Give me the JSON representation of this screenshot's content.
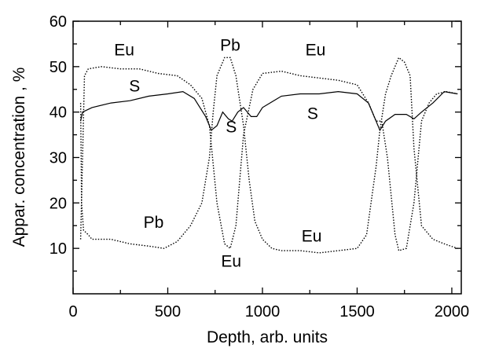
{
  "chart_data": {
    "type": "line",
    "xlabel": "Depth, arb. units",
    "ylabel": "Appar. concentration , %",
    "xlim": [
      0,
      2050
    ],
    "ylim": [
      0,
      60
    ],
    "xticks": [
      0,
      500,
      1000,
      1500,
      2000
    ],
    "yticks": [
      10,
      20,
      30,
      40,
      50,
      60
    ],
    "grid": false,
    "series": [
      {
        "name": "Eu",
        "style": "dotted",
        "points": [
          [
            40,
            12
          ],
          [
            60,
            48
          ],
          [
            80,
            49.5
          ],
          [
            150,
            50
          ],
          [
            250,
            49.5
          ],
          [
            350,
            49.5
          ],
          [
            450,
            48.5
          ],
          [
            550,
            48
          ],
          [
            620,
            46
          ],
          [
            680,
            43
          ],
          [
            720,
            37
          ],
          [
            760,
            20
          ],
          [
            800,
            11
          ],
          [
            830,
            10
          ],
          [
            860,
            15
          ],
          [
            900,
            35
          ],
          [
            950,
            45
          ],
          [
            1000,
            48.5
          ],
          [
            1100,
            49
          ],
          [
            1200,
            48
          ],
          [
            1300,
            47.5
          ],
          [
            1400,
            47
          ],
          [
            1500,
            46
          ],
          [
            1560,
            42
          ],
          [
            1600,
            38
          ],
          [
            1630,
            38
          ],
          [
            1660,
            30
          ],
          [
            1700,
            13
          ],
          [
            1720,
            9.5
          ],
          [
            1760,
            10
          ],
          [
            1800,
            20
          ],
          [
            1840,
            38
          ],
          [
            1880,
            42
          ],
          [
            1920,
            44
          ],
          [
            1970,
            44.5
          ],
          [
            2030,
            44
          ]
        ]
      },
      {
        "name": "S",
        "style": "solid",
        "points": [
          [
            40,
            38
          ],
          [
            50,
            40
          ],
          [
            100,
            41
          ],
          [
            200,
            42
          ],
          [
            300,
            42.5
          ],
          [
            400,
            43.5
          ],
          [
            500,
            44
          ],
          [
            580,
            44.5
          ],
          [
            640,
            43
          ],
          [
            700,
            39
          ],
          [
            730,
            36
          ],
          [
            760,
            37
          ],
          [
            790,
            40
          ],
          [
            820,
            38.5
          ],
          [
            840,
            38
          ],
          [
            870,
            40
          ],
          [
            900,
            41
          ],
          [
            940,
            39
          ],
          [
            970,
            39
          ],
          [
            1000,
            41
          ],
          [
            1100,
            43.5
          ],
          [
            1200,
            44
          ],
          [
            1300,
            44
          ],
          [
            1400,
            44.5
          ],
          [
            1500,
            44
          ],
          [
            1560,
            42
          ],
          [
            1600,
            38
          ],
          [
            1620,
            36
          ],
          [
            1650,
            38
          ],
          [
            1700,
            39.5
          ],
          [
            1760,
            39.5
          ],
          [
            1800,
            38.5
          ],
          [
            1840,
            40
          ],
          [
            1900,
            42
          ],
          [
            1960,
            44.5
          ],
          [
            2030,
            44
          ]
        ]
      },
      {
        "name": "Pb",
        "style": "dotted",
        "points": [
          [
            40,
            42
          ],
          [
            45,
            20
          ],
          [
            55,
            14
          ],
          [
            80,
            13
          ],
          [
            100,
            12
          ],
          [
            150,
            12
          ],
          [
            200,
            12
          ],
          [
            300,
            11
          ],
          [
            400,
            10.5
          ],
          [
            480,
            10
          ],
          [
            550,
            11.5
          ],
          [
            620,
            15
          ],
          [
            680,
            20
          ],
          [
            720,
            30
          ],
          [
            740,
            40
          ],
          [
            760,
            48
          ],
          [
            800,
            52
          ],
          [
            830,
            52
          ],
          [
            860,
            48
          ],
          [
            900,
            37
          ],
          [
            930,
            25
          ],
          [
            960,
            16
          ],
          [
            1000,
            12
          ],
          [
            1050,
            10
          ],
          [
            1100,
            9.5
          ],
          [
            1200,
            9.5
          ],
          [
            1300,
            9
          ],
          [
            1400,
            9.5
          ],
          [
            1500,
            10
          ],
          [
            1550,
            13
          ],
          [
            1600,
            28
          ],
          [
            1620,
            36
          ],
          [
            1650,
            44
          ],
          [
            1680,
            48
          ],
          [
            1720,
            52
          ],
          [
            1750,
            51
          ],
          [
            1780,
            48
          ],
          [
            1800,
            32
          ],
          [
            1840,
            15
          ],
          [
            1900,
            12
          ],
          [
            1960,
            11
          ],
          [
            2030,
            10
          ]
        ]
      }
    ],
    "annotations": [
      {
        "text": "Eu",
        "x": 270,
        "y": 52.5
      },
      {
        "text": "S",
        "x": 325,
        "y": 44.5
      },
      {
        "text": "Pb",
        "x": 830,
        "y": 53.5
      },
      {
        "text": "Eu",
        "x": 1280,
        "y": 52.5
      },
      {
        "text": "S",
        "x": 1265,
        "y": 38.5
      },
      {
        "text": "S",
        "x": 835,
        "y": 35.5
      },
      {
        "text": "Pb",
        "x": 425,
        "y": 14.5
      },
      {
        "text": "Eu",
        "x": 835,
        "y": 6
      },
      {
        "text": "Eu",
        "x": 1260,
        "y": 11.5
      }
    ]
  }
}
